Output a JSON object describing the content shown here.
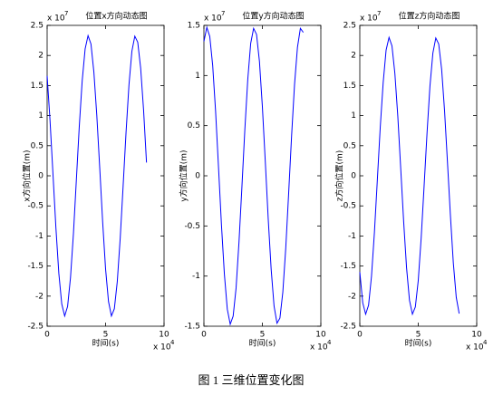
{
  "chart_data": [
    {
      "type": "line",
      "title": "位置x方向动态图",
      "xlabel": "时间(s)",
      "ylabel": "x方向位置(m)",
      "y_exponent": {
        "base": "x 10",
        "power": "7"
      },
      "x_exponent": {
        "base": "x 10",
        "power": "4"
      },
      "color": "#0000ff",
      "xlim": [
        0,
        10
      ],
      "xticks": [
        0,
        5,
        10
      ],
      "ylim": [
        -2.5,
        2.5
      ],
      "yticks": [
        -2.5,
        -2,
        -1.5,
        -1,
        -0.5,
        0,
        0.5,
        1,
        1.5,
        2,
        2.5
      ],
      "x": [
        0,
        0.25,
        0.5,
        0.75,
        1,
        1.25,
        1.5,
        1.75,
        2,
        2.25,
        2.5,
        2.75,
        3,
        3.25,
        3.5,
        3.75,
        4,
        4.25,
        4.5,
        4.75,
        5,
        5.25,
        5.5,
        5.75,
        6,
        6.25,
        6.5,
        6.75,
        7,
        7.25,
        7.5,
        7.75,
        8,
        8.25,
        8.5
      ],
      "values": [
        1.66,
        0.91,
        0.03,
        -0.86,
        -1.62,
        -2.13,
        -2.33,
        -2.17,
        -1.69,
        -0.96,
        -0.07,
        0.82,
        1.58,
        2.11,
        2.33,
        2.19,
        1.72,
        1.0,
        0.13,
        -0.77,
        -1.55,
        -2.09,
        -2.33,
        -2.21,
        -1.76,
        -1.04,
        -0.17,
        0.72,
        1.51,
        2.07,
        2.32,
        2.22,
        1.79,
        1.09,
        0.22
      ]
    },
    {
      "type": "line",
      "title": "位置y方向动态图",
      "xlabel": "时间(s)",
      "ylabel": "y方向位置(m)",
      "y_exponent": {
        "base": "x 10",
        "power": "7"
      },
      "x_exponent": {
        "base": "x 10",
        "power": "4"
      },
      "color": "#0000ff",
      "xlim": [
        0,
        10
      ],
      "xticks": [
        0,
        5,
        10
      ],
      "ylim": [
        -1.5,
        1.5
      ],
      "yticks": [
        -1.5,
        -1,
        -0.5,
        0,
        0.5,
        1,
        1.5
      ],
      "x": [
        0,
        0.25,
        0.5,
        0.75,
        1,
        1.25,
        1.5,
        1.75,
        2,
        2.25,
        2.5,
        2.75,
        3,
        3.25,
        3.5,
        3.75,
        4,
        4.25,
        4.5,
        4.75,
        5,
        5.25,
        5.5,
        5.75,
        6,
        6.25,
        6.5,
        6.75,
        7,
        7.25,
        7.5,
        7.75,
        8,
        8.25,
        8.5
      ],
      "values": [
        1.34,
        1.48,
        1.39,
        1.1,
        0.64,
        0.08,
        -0.49,
        -0.98,
        -1.33,
        -1.48,
        -1.4,
        -1.12,
        -0.66,
        -0.11,
        0.46,
        0.96,
        1.32,
        1.47,
        1.41,
        1.14,
        0.69,
        0.14,
        -0.43,
        -0.93,
        -1.3,
        -1.47,
        -1.42,
        -1.16,
        -0.72,
        -0.17,
        0.4,
        0.91,
        1.28,
        1.47,
        1.43
      ]
    },
    {
      "type": "line",
      "title": "位置z方向动态图",
      "xlabel": "时间(s)",
      "ylabel": "z方向位置(m)",
      "y_exponent": {
        "base": "x 10",
        "power": "7"
      },
      "x_exponent": {
        "base": "x 10",
        "power": "4"
      },
      "color": "#0000ff",
      "xlim": [
        0,
        10
      ],
      "xticks": [
        0,
        5,
        10
      ],
      "ylim": [
        -2.5,
        2.5
      ],
      "yticks": [
        -2.5,
        -2,
        -1.5,
        -1,
        -0.5,
        0,
        0.5,
        1,
        1.5,
        2,
        2.5
      ],
      "x": [
        0,
        0.25,
        0.5,
        0.75,
        1,
        1.25,
        1.5,
        1.75,
        2,
        2.25,
        2.5,
        2.75,
        3,
        3.25,
        3.5,
        3.75,
        4,
        4.25,
        4.5,
        4.75,
        5,
        5.25,
        5.5,
        5.75,
        6,
        6.25,
        6.5,
        6.75,
        7,
        7.25,
        7.5,
        7.75,
        8,
        8.25,
        8.5
      ],
      "values": [
        -1.6,
        -2.11,
        -2.3,
        -2.15,
        -1.67,
        -0.94,
        -0.07,
        0.81,
        1.55,
        2.09,
        2.3,
        2.16,
        1.7,
        0.99,
        0.12,
        -0.76,
        -1.53,
        -2.07,
        -2.3,
        -2.18,
        -1.74,
        -1.03,
        -0.17,
        0.71,
        1.49,
        2.04,
        2.29,
        2.19,
        1.77,
        1.08,
        0.22,
        -0.66,
        -1.45,
        -2.02,
        -2.29
      ]
    }
  ],
  "caption": "图 1 三维位置变化图"
}
